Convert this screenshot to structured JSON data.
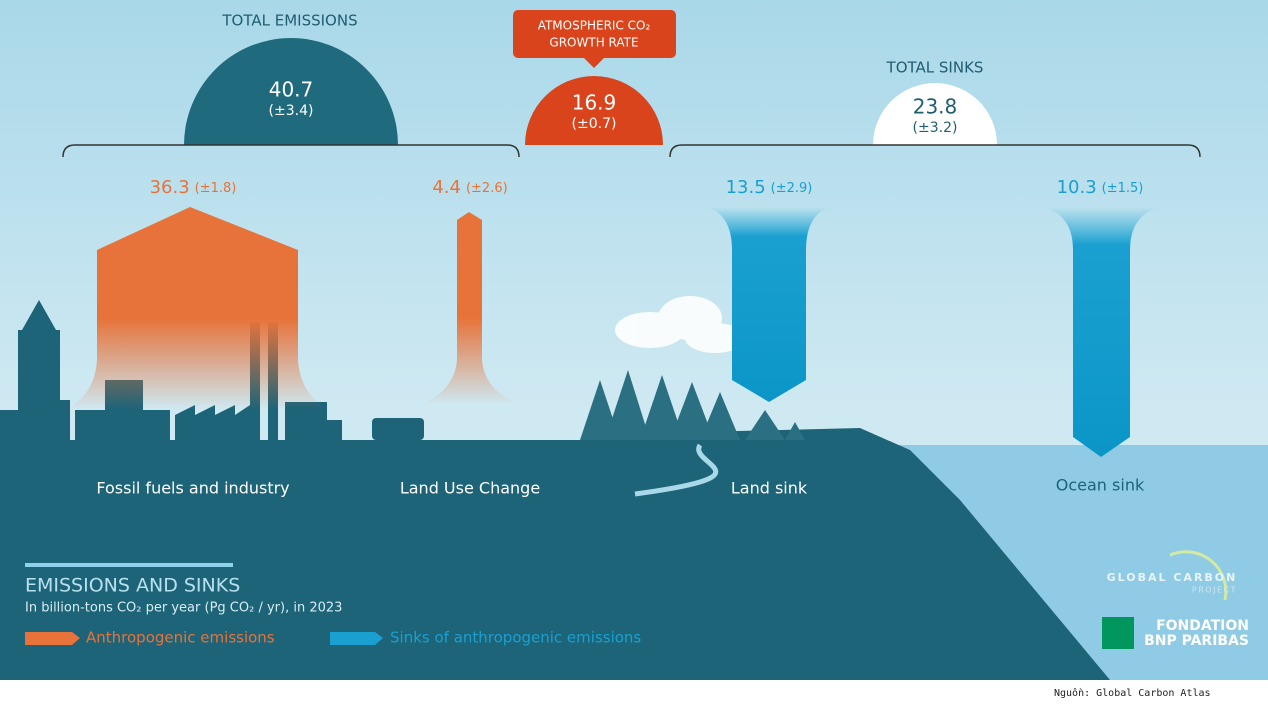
{
  "total_emissions": {
    "title": "TOTAL EMISSIONS",
    "value": 40.7,
    "uncertainty": "(±3.4)"
  },
  "growth_rate": {
    "title": [
      "ATMOSPHERIC CO₂",
      "GROWTH RATE"
    ],
    "value": 16.9,
    "uncertainty": "(±0.7)"
  },
  "total_sinks": {
    "title": "TOTAL SINKS",
    "value": 23.8,
    "uncertainty": "(±3.2)"
  },
  "flows": [
    {
      "label": "Fossil fuels and industry",
      "value": 36.3,
      "uncertainty": "(±1.8)"
    },
    {
      "label": "Land Use Change",
      "value": 4.4,
      "uncertainty": "(±2.6)"
    },
    {
      "label": "Land sink",
      "value": 13.5,
      "uncertainty": "(±2.9)"
    },
    {
      "label": "Ocean sink",
      "value": 10.3,
      "uncertainty": "(±1.5)"
    }
  ],
  "legend": {
    "title": "EMISSIONS AND SINKS",
    "subtitle": "In billion-tons CO₂ per year (Pg CO₂ / yr), in 2023",
    "items": [
      "Anthropogenic emissions",
      "Sinks of anthropogenic emissions"
    ]
  },
  "logos": {
    "gcp": [
      "GLOBAL CARBON",
      "PROJECT"
    ],
    "bnp": [
      "FONDATION",
      "BNP PARIBAS"
    ]
  },
  "source": "Nguồn: Global Carbon Atlas"
}
